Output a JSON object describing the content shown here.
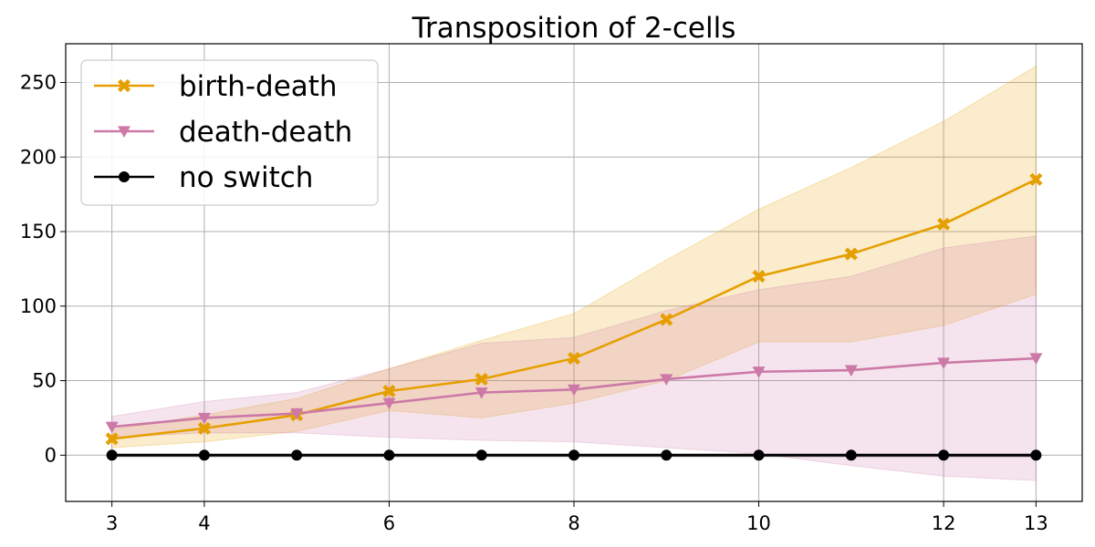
{
  "chart_data": {
    "type": "line",
    "title": "Transposition of 2-cells",
    "xlabel": "",
    "ylabel": "",
    "x": [
      3,
      4,
      5,
      6,
      7,
      8,
      9,
      10,
      11,
      12,
      13
    ],
    "xticks": [
      3,
      4,
      6,
      8,
      10,
      12,
      13
    ],
    "yticks": [
      0,
      50,
      100,
      150,
      200,
      250
    ],
    "xlim": [
      2.5,
      13.5
    ],
    "ylim": [
      -31,
      276
    ],
    "grid": true,
    "legend_position": "top-left",
    "series": [
      {
        "name": "birth-death",
        "color": "#e69f00",
        "marker": "X",
        "values": [
          11,
          18,
          27,
          43,
          51,
          65,
          91,
          120,
          135,
          155,
          185
        ],
        "band_low": [
          5,
          9,
          16,
          30,
          25,
          35,
          50,
          76,
          76,
          87,
          108
        ],
        "band_high": [
          17,
          27,
          38,
          58,
          77,
          95,
          131,
          165,
          193,
          224,
          261
        ]
      },
      {
        "name": "death-death",
        "color": "#cc79a7",
        "marker": "v",
        "values": [
          19,
          25,
          28,
          35,
          42,
          44,
          51,
          56,
          57,
          62,
          65
        ],
        "band_low": [
          12,
          15,
          15,
          12,
          10,
          9,
          5,
          1,
          -7,
          -14,
          -17
        ],
        "band_high": [
          26,
          36,
          42,
          58,
          75,
          79,
          97,
          111,
          120,
          139,
          147
        ]
      },
      {
        "name": "no switch",
        "color": "#000000",
        "marker": "o",
        "values": [
          0,
          0,
          0,
          0,
          0,
          0,
          0,
          0,
          0,
          0,
          0
        ],
        "band_low": [
          -1,
          -1,
          -1,
          -1,
          -1,
          -1,
          -1,
          -1,
          -1,
          -1,
          -1
        ],
        "band_high": [
          1,
          1,
          1,
          1,
          1,
          1,
          1,
          1,
          1,
          1,
          1
        ]
      }
    ]
  }
}
